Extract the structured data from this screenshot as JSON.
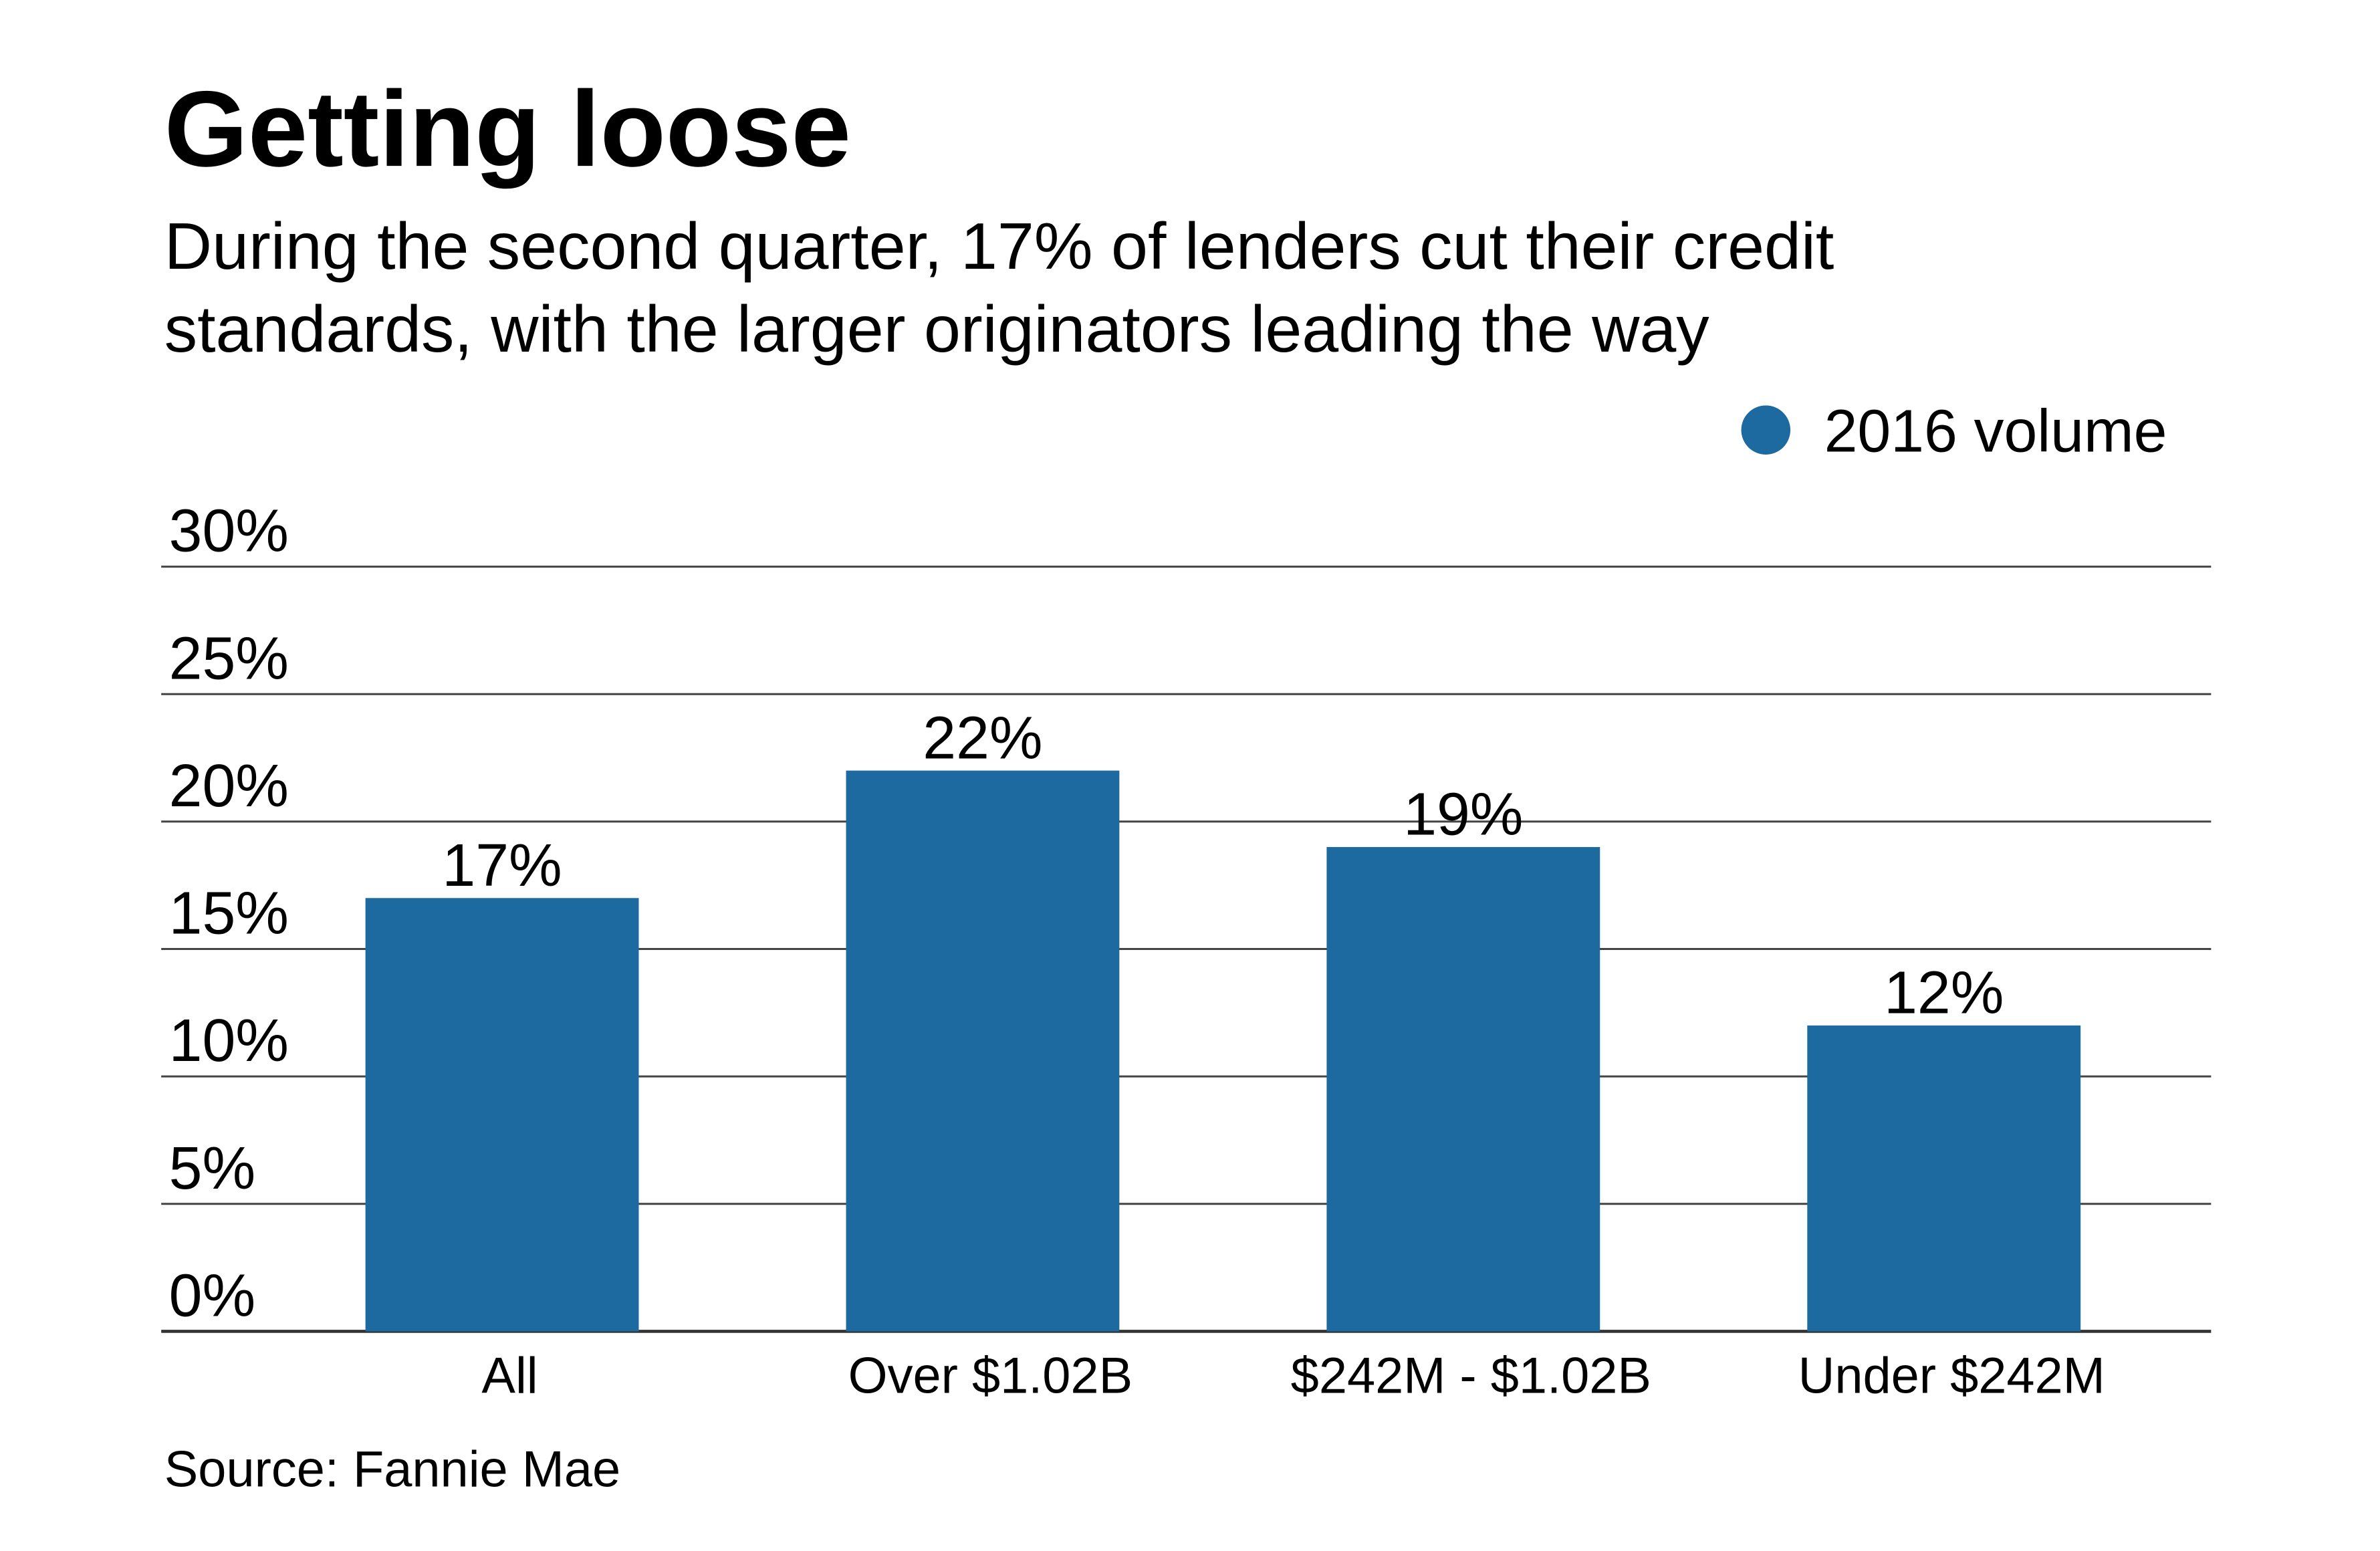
{
  "chart_data": {
    "type": "bar",
    "title": "Getting loose",
    "subtitle": [
      "During the second quarter, 17% of lenders cut their credit",
      "standards, with the larger originators leading the way"
    ],
    "categories": [
      "All",
      "Over $1.02B",
      "$242M - $1.02B",
      "Under $242M"
    ],
    "series": [
      {
        "name": "2016 volume",
        "values": [
          17,
          22,
          19,
          12
        ],
        "color": "#1c6aa0"
      }
    ],
    "value_labels": [
      "17%",
      "22%",
      "19%",
      "12%"
    ],
    "ylim": [
      0,
      30
    ],
    "yticks": [
      0,
      5,
      10,
      15,
      20,
      25,
      30
    ],
    "ytick_labels": [
      "0%",
      "5%",
      "10%",
      "15%",
      "20%",
      "25%",
      "30%"
    ],
    "grid": true,
    "legend_position": "top-right",
    "source": "Source: Fannie Mae"
  }
}
